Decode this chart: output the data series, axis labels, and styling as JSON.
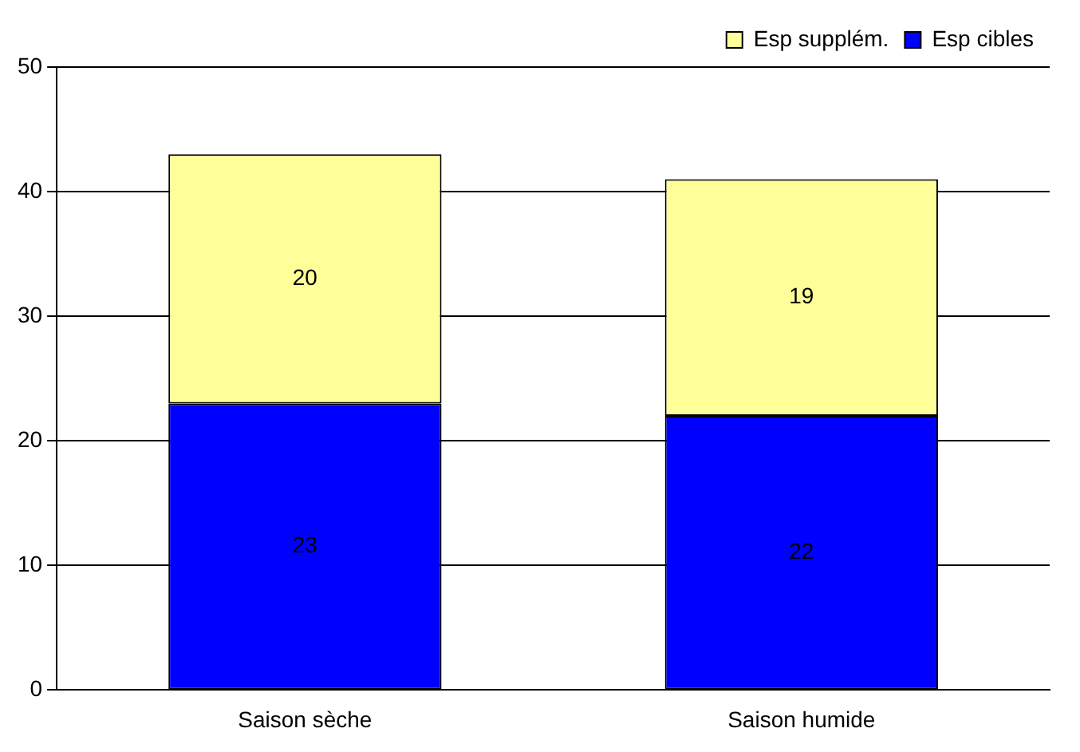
{
  "chart_data": {
    "type": "bar",
    "stacked": true,
    "categories": [
      "Saison sèche",
      "Saison humide"
    ],
    "series": [
      {
        "name": "Esp cibles",
        "color": "#0000ff",
        "values": [
          23,
          22
        ]
      },
      {
        "name": "Esp supplém.",
        "color": "#ffff99",
        "values": [
          20,
          19
        ]
      }
    ],
    "ylim": [
      0,
      50
    ],
    "yticks": [
      0,
      10,
      20,
      30,
      40,
      50
    ],
    "grid": "y",
    "legend": "top right",
    "data_labels": true
  }
}
